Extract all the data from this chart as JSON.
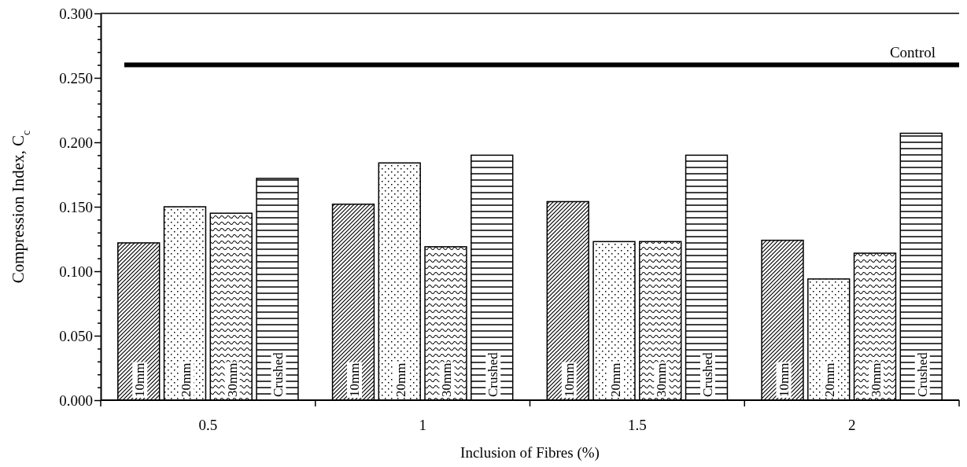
{
  "chart_data": {
    "type": "bar",
    "xlabel": "Inclusion of Fibres (%)",
    "ylabel": "Compression Index, C$_{c}$",
    "categories": [
      "0.5",
      "1",
      "1.5",
      "2"
    ],
    "series": [
      {
        "name": "10mm",
        "color": "#000000",
        "values": [
          0.122,
          0.152,
          0.154,
          0.124
        ]
      },
      {
        "name": "20mm",
        "color": "#000000",
        "values": [
          0.15,
          0.184,
          0.123,
          0.094
        ]
      },
      {
        "name": "30mm",
        "color": "#000000",
        "values": [
          0.145,
          0.119,
          0.123,
          0.114
        ]
      },
      {
        "name": "Crushed",
        "color": "#000000",
        "values": [
          0.172,
          0.19,
          0.19,
          0.207
        ]
      }
    ],
    "ylim": [
      0,
      0.3
    ],
    "yticks": [
      {
        "value": 0,
        "label": "0.000"
      },
      {
        "value": 0.01,
        "label": null
      },
      {
        "value": 0.02,
        "label": null
      },
      {
        "value": 0.03,
        "label": null
      },
      {
        "value": 0.04,
        "label": null
      },
      {
        "value": 0.05,
        "label": "0.050"
      },
      {
        "value": 0.06,
        "label": null
      },
      {
        "value": 0.07,
        "label": null
      },
      {
        "value": 0.08,
        "label": null
      },
      {
        "value": 0.09,
        "label": null
      },
      {
        "value": 0.1,
        "label": "0.100"
      },
      {
        "value": 0.11,
        "label": null
      },
      {
        "value": 0.12,
        "label": null
      },
      {
        "value": 0.13,
        "label": null
      },
      {
        "value": 0.14,
        "label": null
      },
      {
        "value": 0.15,
        "label": "0.150"
      },
      {
        "value": 0.16,
        "label": null
      },
      {
        "value": 0.17,
        "label": null
      },
      {
        "value": 0.18,
        "label": null
      },
      {
        "value": 0.19,
        "label": null
      },
      {
        "value": 0.2,
        "label": "0.200"
      },
      {
        "value": 0.21,
        "label": null
      },
      {
        "value": 0.22,
        "label": null
      },
      {
        "value": 0.23,
        "label": null
      },
      {
        "value": 0.24,
        "label": null
      },
      {
        "value": 0.25,
        "label": "0.250"
      },
      {
        "value": 0.26,
        "label": null
      },
      {
        "value": 0.27,
        "label": null
      },
      {
        "value": 0.28,
        "label": null
      },
      {
        "value": 0.29,
        "label": null
      },
      {
        "value": 0.3,
        "label": "0.300"
      }
    ],
    "ref_lines": [
      {
        "axis": "y",
        "value": 0.26,
        "label": "Control",
        "color": "#000000"
      }
    ],
    "grid": false
  }
}
